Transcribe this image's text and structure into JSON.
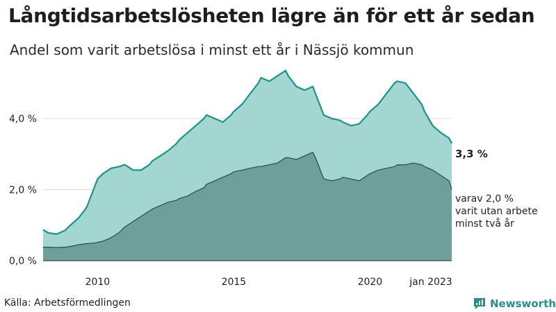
{
  "header": {
    "title": "Långtidsarbetslösheten lägre än för ett år sedan",
    "subtitle": "Andel som varit arbetslösa i minst ett år i Nässjö kommun"
  },
  "footer": {
    "source": "Källa: Arbetsförmedlingen",
    "brand": "Newsworthy"
  },
  "colors": {
    "total_line": "#1a9487",
    "total_fill": "#a3d5d1",
    "long_line": "#2a4a44",
    "long_fill": "#6e9f99",
    "grid": "#dddddd",
    "axis": "#222222"
  },
  "chart_data": {
    "type": "area",
    "title": "Långtidsarbetslösheten lägre än för ett år sedan",
    "subtitle": "Andel som varit arbetslösa i minst ett år i Nässjö kommun",
    "x_ticks": [
      {
        "x": 2010.0,
        "label": "2010"
      },
      {
        "x": 2015.0,
        "label": "2015"
      },
      {
        "x": 2020.0,
        "label": "2020"
      },
      {
        "x": 2023.0,
        "label": "jan 2023"
      }
    ],
    "y_ticks": [
      {
        "y": 0,
        "label": "0,0 %"
      },
      {
        "y": 2,
        "label": "2,0 %"
      },
      {
        "y": 4,
        "label": "4,0 %"
      }
    ],
    "xlim": [
      2008.0,
      2023.0
    ],
    "ylim": [
      0,
      5.6
    ],
    "grid": true,
    "series": [
      {
        "key": "total",
        "end_label": "3,3 %",
        "x": [
          2008.0,
          2008.2,
          2008.5,
          2008.8,
          2009.0,
          2009.3,
          2009.6,
          2009.9,
          2010.0,
          2010.2,
          2010.5,
          2010.8,
          2011.0,
          2011.3,
          2011.6,
          2011.9,
          2012.0,
          2012.3,
          2012.6,
          2012.9,
          2013.0,
          2013.3,
          2013.6,
          2013.9,
          2014.0,
          2014.3,
          2014.6,
          2014.9,
          2015.0,
          2015.3,
          2015.6,
          2015.9,
          2016.0,
          2016.3,
          2016.6,
          2016.9,
          2017.0,
          2017.3,
          2017.6,
          2017.9,
          2018.0,
          2018.3,
          2018.6,
          2018.9,
          2019.0,
          2019.3,
          2019.6,
          2019.9,
          2020.0,
          2020.3,
          2020.6,
          2020.9,
          2021.0,
          2021.3,
          2021.6,
          2021.9,
          2022.0,
          2022.3,
          2022.6,
          2022.9,
          2023.0
        ],
        "y": [
          0.87,
          0.78,
          0.75,
          0.85,
          1.0,
          1.2,
          1.5,
          2.1,
          2.3,
          2.45,
          2.6,
          2.65,
          2.7,
          2.55,
          2.55,
          2.7,
          2.8,
          2.95,
          3.1,
          3.3,
          3.4,
          3.6,
          3.8,
          4.0,
          4.1,
          4.0,
          3.9,
          4.1,
          4.2,
          4.4,
          4.7,
          5.0,
          5.15,
          5.05,
          5.2,
          5.35,
          5.2,
          4.9,
          4.8,
          4.9,
          4.7,
          4.1,
          4.0,
          3.95,
          3.9,
          3.8,
          3.85,
          4.1,
          4.2,
          4.4,
          4.7,
          5.0,
          5.05,
          5.0,
          4.7,
          4.4,
          4.2,
          3.8,
          3.6,
          3.45,
          3.3
        ]
      },
      {
        "key": "long",
        "end_label_lines": [
          "varav 2,0 %",
          "varit utan arbete",
          "minst två år"
        ],
        "x": [
          2008.0,
          2008.2,
          2008.5,
          2008.8,
          2009.0,
          2009.3,
          2009.6,
          2009.9,
          2010.0,
          2010.2,
          2010.5,
          2010.8,
          2011.0,
          2011.3,
          2011.6,
          2011.9,
          2012.0,
          2012.3,
          2012.6,
          2012.9,
          2013.0,
          2013.3,
          2013.6,
          2013.9,
          2014.0,
          2014.3,
          2014.6,
          2014.9,
          2015.0,
          2015.3,
          2015.6,
          2015.9,
          2016.0,
          2016.3,
          2016.6,
          2016.9,
          2017.0,
          2017.3,
          2017.6,
          2017.9,
          2018.0,
          2018.3,
          2018.6,
          2018.9,
          2019.0,
          2019.3,
          2019.6,
          2019.9,
          2020.0,
          2020.3,
          2020.6,
          2020.9,
          2021.0,
          2021.3,
          2021.6,
          2021.9,
          2022.0,
          2022.3,
          2022.6,
          2022.9,
          2023.0
        ],
        "y": [
          0.38,
          0.38,
          0.37,
          0.38,
          0.4,
          0.45,
          0.48,
          0.5,
          0.52,
          0.55,
          0.65,
          0.8,
          0.95,
          1.1,
          1.25,
          1.4,
          1.45,
          1.55,
          1.65,
          1.7,
          1.75,
          1.82,
          1.95,
          2.05,
          2.15,
          2.25,
          2.35,
          2.45,
          2.5,
          2.55,
          2.6,
          2.65,
          2.65,
          2.7,
          2.75,
          2.9,
          2.9,
          2.85,
          2.95,
          3.05,
          2.9,
          2.3,
          2.25,
          2.3,
          2.35,
          2.3,
          2.25,
          2.4,
          2.45,
          2.55,
          2.6,
          2.65,
          2.7,
          2.7,
          2.75,
          2.7,
          2.65,
          2.55,
          2.4,
          2.25,
          2.0
        ]
      }
    ]
  }
}
